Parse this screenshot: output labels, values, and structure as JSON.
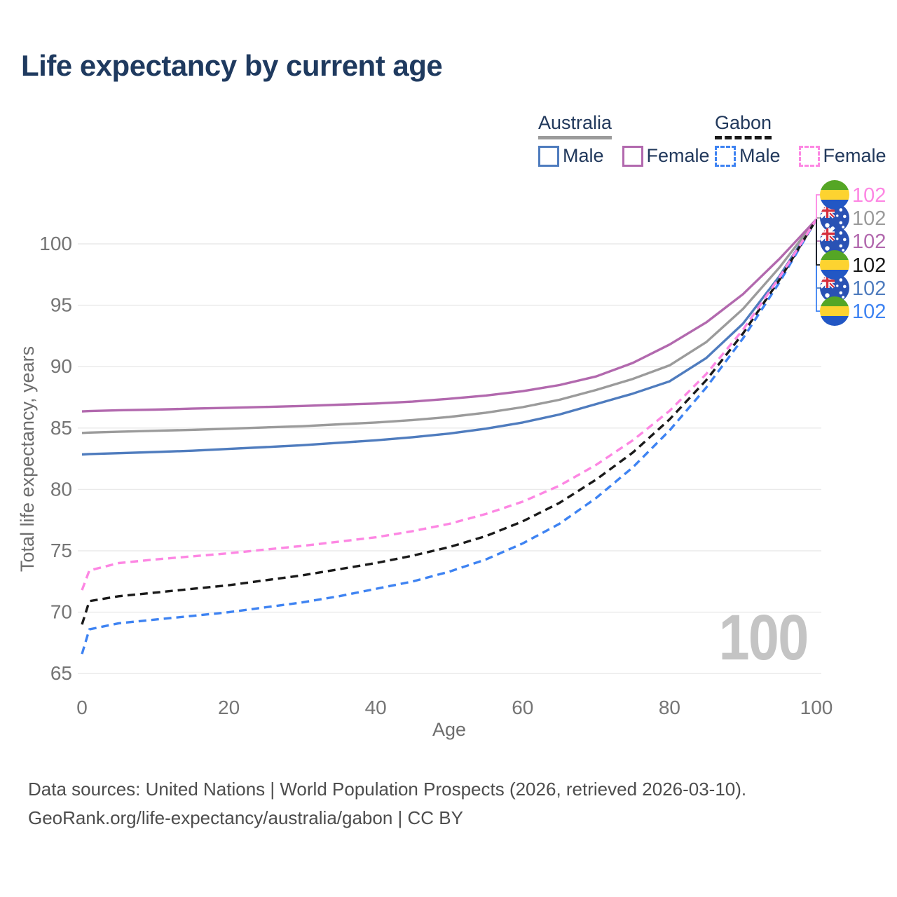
{
  "title": {
    "text": "Life expectancy by current age",
    "color": "#1f3a5f"
  },
  "legend": {
    "groups": [
      {
        "name": "Australia",
        "line_style": "solid",
        "line_color": "#9b9b9b",
        "items": [
          {
            "label": "Male",
            "color": "#4f7cbe",
            "dashed": false
          },
          {
            "label": "Female",
            "color": "#b269ae",
            "dashed": false
          }
        ]
      },
      {
        "name": "Gabon",
        "line_style": "dashed",
        "line_color": "#1a1a1a",
        "items": [
          {
            "label": "Male",
            "color": "#3e83f2",
            "dashed": true
          },
          {
            "label": "Female",
            "color": "#fd87e3",
            "dashed": true
          }
        ]
      }
    ]
  },
  "chart_data": {
    "type": "line",
    "title": "Life expectancy by current age",
    "xlabel": "Age",
    "ylabel": "Total life expectancy, years",
    "x_ticks": [
      0,
      20,
      40,
      60,
      80,
      100
    ],
    "y_ticks": [
      65,
      70,
      75,
      80,
      85,
      90,
      95,
      100
    ],
    "xlim": [
      0,
      100
    ],
    "ylim": [
      63.5,
      102.5
    ],
    "grid": "horizontal",
    "x": [
      0,
      1,
      5,
      10,
      15,
      20,
      25,
      30,
      35,
      40,
      45,
      50,
      55,
      60,
      65,
      70,
      75,
      80,
      85,
      90,
      95,
      100
    ],
    "series": [
      {
        "name": "Australia Male",
        "country": "Australia",
        "sex": "Male",
        "color": "#4f7cbe",
        "dashed": false,
        "flag": "australia",
        "end_value": "102",
        "end_row": 4,
        "values": [
          82.85,
          82.88,
          82.95,
          83.05,
          83.15,
          83.3,
          83.45,
          83.6,
          83.8,
          84.0,
          84.25,
          84.55,
          84.95,
          85.45,
          86.1,
          86.95,
          87.8,
          88.8,
          90.7,
          93.5,
          97.4,
          102
        ]
      },
      {
        "name": "Australia",
        "country": "Australia",
        "sex": "Both",
        "color": "#9b9b9b",
        "dashed": false,
        "flag": "australia",
        "end_value": "102",
        "end_row": 1,
        "values": [
          84.6,
          84.63,
          84.7,
          84.78,
          84.85,
          84.95,
          85.05,
          85.15,
          85.3,
          85.45,
          85.65,
          85.9,
          86.25,
          86.7,
          87.3,
          88.1,
          89.0,
          90.1,
          92.0,
          94.7,
          98.1,
          102
        ]
      },
      {
        "name": "Australia Female",
        "country": "Australia",
        "sex": "Female",
        "color": "#b269ae",
        "dashed": false,
        "flag": "australia",
        "end_value": "102",
        "end_row": 2,
        "values": [
          86.35,
          86.38,
          86.45,
          86.5,
          86.58,
          86.65,
          86.72,
          86.8,
          86.9,
          87.0,
          87.15,
          87.38,
          87.65,
          88.0,
          88.5,
          89.2,
          90.3,
          91.8,
          93.6,
          95.9,
          98.8,
          102
        ]
      },
      {
        "name": "Gabon Male",
        "country": "Gabon",
        "sex": "Male",
        "color": "#3e83f2",
        "dashed": true,
        "flag": "gabon",
        "end_value": "102",
        "end_row": 5,
        "values": [
          66.6,
          68.6,
          69.1,
          69.4,
          69.7,
          70.0,
          70.4,
          70.8,
          71.3,
          71.9,
          72.5,
          73.3,
          74.3,
          75.6,
          77.2,
          79.3,
          81.8,
          84.8,
          88.3,
          92.3,
          96.9,
          102
        ]
      },
      {
        "name": "Gabon",
        "country": "Gabon",
        "sex": "Both",
        "color": "#1a1a1a",
        "dashed": true,
        "flag": "gabon",
        "end_value": "102",
        "end_row": 3,
        "values": [
          69.0,
          70.9,
          71.3,
          71.6,
          71.9,
          72.2,
          72.6,
          73.0,
          73.5,
          74.0,
          74.6,
          75.3,
          76.2,
          77.4,
          78.9,
          80.8,
          83.0,
          85.7,
          88.9,
          92.7,
          97.1,
          102
        ]
      },
      {
        "name": "Gabon Female",
        "country": "Gabon",
        "sex": "Female",
        "color": "#fd87e3",
        "dashed": true,
        "flag": "gabon",
        "end_value": "102",
        "end_row": 0,
        "values": [
          71.8,
          73.4,
          74.0,
          74.3,
          74.55,
          74.8,
          75.1,
          75.4,
          75.75,
          76.1,
          76.6,
          77.2,
          78.0,
          79.0,
          80.3,
          82.0,
          84.0,
          86.4,
          89.4,
          93.0,
          97.3,
          102
        ]
      }
    ],
    "legend_position": "top-right"
  },
  "watermark": {
    "text": "100"
  },
  "footer": {
    "line1": "Data sources: United Nations | World Population Prospects (2026, retrieved 2026-03-10).",
    "line2": "GeoRank.org/life-expectancy/australia/gabon | CC BY"
  }
}
